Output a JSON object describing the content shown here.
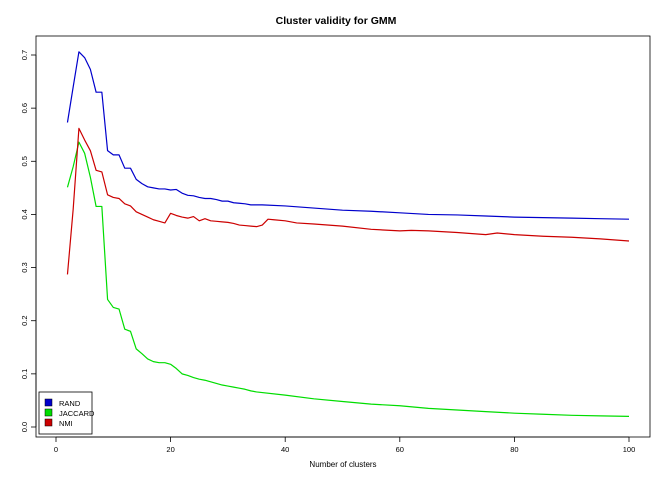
{
  "chart_data": {
    "type": "line",
    "title": "Cluster validity for GMM",
    "xlabel": "Number of clusters",
    "ylabel": "",
    "xlim": [
      0,
      100
    ],
    "ylim": [
      0,
      0.7
    ],
    "x_ticks": [
      0,
      20,
      40,
      60,
      80,
      100
    ],
    "x_tick_labels": [
      "0",
      "20",
      "40",
      "60",
      "80",
      "100"
    ],
    "y_ticks": [
      0.0,
      0.1,
      0.2,
      0.3,
      0.4,
      0.5,
      0.6,
      0.7
    ],
    "y_tick_labels": [
      "0.0",
      "0.1",
      "0.2",
      "0.3",
      "0.4",
      "0.5",
      "0.6",
      "0.7"
    ],
    "grid": false,
    "legend_position": "bottom-left",
    "series": [
      {
        "name": "RAND",
        "color": "#0000cc",
        "points": [
          [
            2,
            0.573
          ],
          [
            3,
            0.64
          ],
          [
            4,
            0.706
          ],
          [
            5,
            0.695
          ],
          [
            6,
            0.673
          ],
          [
            7,
            0.63
          ],
          [
            8,
            0.63
          ],
          [
            9,
            0.52
          ],
          [
            10,
            0.512
          ],
          [
            11,
            0.512
          ],
          [
            12,
            0.487
          ],
          [
            13,
            0.487
          ],
          [
            14,
            0.466
          ],
          [
            15,
            0.458
          ],
          [
            16,
            0.452
          ],
          [
            17,
            0.45
          ],
          [
            18,
            0.448
          ],
          [
            19,
            0.448
          ],
          [
            20,
            0.446
          ],
          [
            21,
            0.447
          ],
          [
            22,
            0.44
          ],
          [
            23,
            0.436
          ],
          [
            24,
            0.435
          ],
          [
            25,
            0.432
          ],
          [
            26,
            0.43
          ],
          [
            27,
            0.43
          ],
          [
            28,
            0.428
          ],
          [
            29,
            0.425
          ],
          [
            30,
            0.425
          ],
          [
            31,
            0.422
          ],
          [
            32,
            0.421
          ],
          [
            33,
            0.42
          ],
          [
            34,
            0.418
          ],
          [
            35,
            0.418
          ],
          [
            36,
            0.418
          ],
          [
            40,
            0.416
          ],
          [
            45,
            0.412
          ],
          [
            50,
            0.408
          ],
          [
            55,
            0.406
          ],
          [
            60,
            0.403
          ],
          [
            65,
            0.4
          ],
          [
            70,
            0.399
          ],
          [
            75,
            0.397
          ],
          [
            80,
            0.395
          ],
          [
            85,
            0.394
          ],
          [
            90,
            0.393
          ],
          [
            95,
            0.392
          ],
          [
            100,
            0.391
          ]
        ]
      },
      {
        "name": "JACCARD",
        "color": "#00dd00",
        "points": [
          [
            2,
            0.451
          ],
          [
            3,
            0.49
          ],
          [
            4,
            0.536
          ],
          [
            5,
            0.515
          ],
          [
            6,
            0.47
          ],
          [
            7,
            0.415
          ],
          [
            8,
            0.415
          ],
          [
            9,
            0.24
          ],
          [
            10,
            0.225
          ],
          [
            11,
            0.222
          ],
          [
            12,
            0.184
          ],
          [
            13,
            0.18
          ],
          [
            14,
            0.147
          ],
          [
            15,
            0.138
          ],
          [
            16,
            0.128
          ],
          [
            17,
            0.123
          ],
          [
            18,
            0.121
          ],
          [
            19,
            0.121
          ],
          [
            20,
            0.118
          ],
          [
            21,
            0.11
          ],
          [
            22,
            0.1
          ],
          [
            23,
            0.097
          ],
          [
            24,
            0.093
          ],
          [
            25,
            0.09
          ],
          [
            26,
            0.088
          ],
          [
            27,
            0.085
          ],
          [
            28,
            0.082
          ],
          [
            29,
            0.079
          ],
          [
            30,
            0.077
          ],
          [
            31,
            0.075
          ],
          [
            32,
            0.073
          ],
          [
            33,
            0.071
          ],
          [
            34,
            0.068
          ],
          [
            35,
            0.066
          ],
          [
            40,
            0.06
          ],
          [
            45,
            0.053
          ],
          [
            50,
            0.048
          ],
          [
            55,
            0.043
          ],
          [
            60,
            0.04
          ],
          [
            65,
            0.035
          ],
          [
            70,
            0.032
          ],
          [
            75,
            0.029
          ],
          [
            80,
            0.026
          ],
          [
            85,
            0.024
          ],
          [
            90,
            0.022
          ],
          [
            95,
            0.021
          ],
          [
            100,
            0.02
          ]
        ]
      },
      {
        "name": "NMI",
        "color": "#cc0000",
        "points": [
          [
            2,
            0.287
          ],
          [
            3,
            0.41
          ],
          [
            4,
            0.562
          ],
          [
            5,
            0.54
          ],
          [
            6,
            0.52
          ],
          [
            7,
            0.483
          ],
          [
            8,
            0.48
          ],
          [
            9,
            0.437
          ],
          [
            10,
            0.432
          ],
          [
            11,
            0.43
          ],
          [
            12,
            0.42
          ],
          [
            13,
            0.416
          ],
          [
            14,
            0.405
          ],
          [
            15,
            0.4
          ],
          [
            16,
            0.395
          ],
          [
            17,
            0.39
          ],
          [
            18,
            0.387
          ],
          [
            19,
            0.384
          ],
          [
            20,
            0.402
          ],
          [
            21,
            0.398
          ],
          [
            22,
            0.395
          ],
          [
            23,
            0.393
          ],
          [
            24,
            0.396
          ],
          [
            25,
            0.388
          ],
          [
            26,
            0.392
          ],
          [
            27,
            0.388
          ],
          [
            28,
            0.387
          ],
          [
            29,
            0.386
          ],
          [
            30,
            0.385
          ],
          [
            31,
            0.383
          ],
          [
            32,
            0.38
          ],
          [
            33,
            0.379
          ],
          [
            34,
            0.378
          ],
          [
            35,
            0.377
          ],
          [
            36,
            0.38
          ],
          [
            37,
            0.391
          ],
          [
            38,
            0.39
          ],
          [
            40,
            0.388
          ],
          [
            42,
            0.384
          ],
          [
            45,
            0.382
          ],
          [
            50,
            0.378
          ],
          [
            55,
            0.372
          ],
          [
            60,
            0.369
          ],
          [
            62,
            0.37
          ],
          [
            65,
            0.369
          ],
          [
            70,
            0.366
          ],
          [
            75,
            0.362
          ],
          [
            77,
            0.365
          ],
          [
            80,
            0.362
          ],
          [
            85,
            0.359
          ],
          [
            90,
            0.357
          ],
          [
            95,
            0.354
          ],
          [
            100,
            0.35
          ]
        ]
      }
    ]
  }
}
